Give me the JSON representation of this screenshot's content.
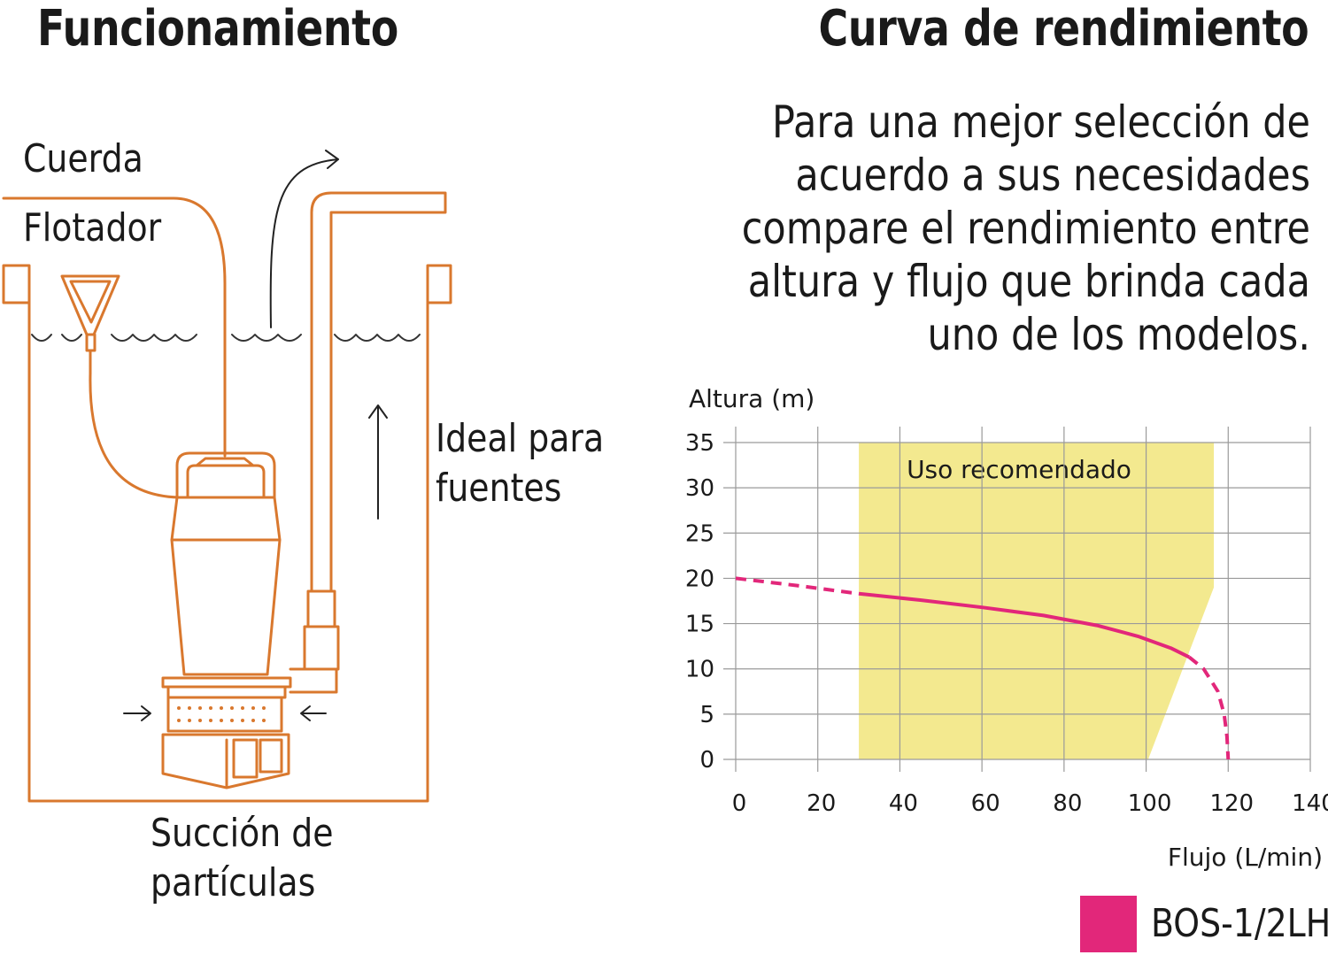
{
  "left_panel": {
    "title": "Funcionamiento",
    "labels": {
      "cuerda": "Cuerda",
      "flotador": "Flotador",
      "ideal": [
        "Ideal para",
        "fuentes"
      ],
      "succion": [
        "Succión de",
        "partículas"
      ]
    },
    "colors": {
      "line": "#d9782e"
    }
  },
  "right_panel": {
    "title": "Curva de rendimiento",
    "description": [
      "Para una mejor selección de",
      "acuerdo a sus necesidades",
      "compare el rendimiento entre",
      "altura y flujo que brinda cada",
      "uno de los modelos."
    ]
  },
  "chart_data": {
    "type": "line",
    "title": "",
    "xlabel": "Flujo (L/min)",
    "ylabel": "Altura (m)",
    "xlim": [
      0,
      140
    ],
    "ylim": [
      0,
      35
    ],
    "x_ticks": [
      0,
      20,
      40,
      60,
      80,
      100,
      120,
      140
    ],
    "y_ticks": [
      0,
      5,
      10,
      15,
      20,
      25,
      30,
      35
    ],
    "grid": true,
    "recommended_zone": {
      "label": "Uso recomendado",
      "color": "#f3e98f",
      "polygon": [
        [
          30,
          0
        ],
        [
          30,
          35
        ],
        [
          116.5,
          35
        ],
        [
          116.5,
          19
        ],
        [
          100.5,
          0
        ]
      ]
    },
    "series": [
      {
        "name": "BOS-1/2LH",
        "color": "#e2277a",
        "dashed_head": [
          [
            0,
            20
          ],
          [
            15,
            19.2
          ],
          [
            30,
            18.3
          ]
        ],
        "solid": [
          [
            30,
            18.3
          ],
          [
            45,
            17.6
          ],
          [
            60,
            16.8
          ],
          [
            75,
            15.9
          ],
          [
            88,
            14.8
          ],
          [
            98,
            13.6
          ],
          [
            106,
            12.3
          ],
          [
            110.5,
            11.3
          ]
        ],
        "dashed_tail": [
          [
            110.5,
            11.3
          ],
          [
            114,
            10
          ],
          [
            117.5,
            7.5
          ],
          [
            119,
            5
          ],
          [
            119.7,
            2.5
          ],
          [
            120,
            0
          ]
        ]
      }
    ],
    "legend": {
      "position": "bottom-right"
    }
  }
}
